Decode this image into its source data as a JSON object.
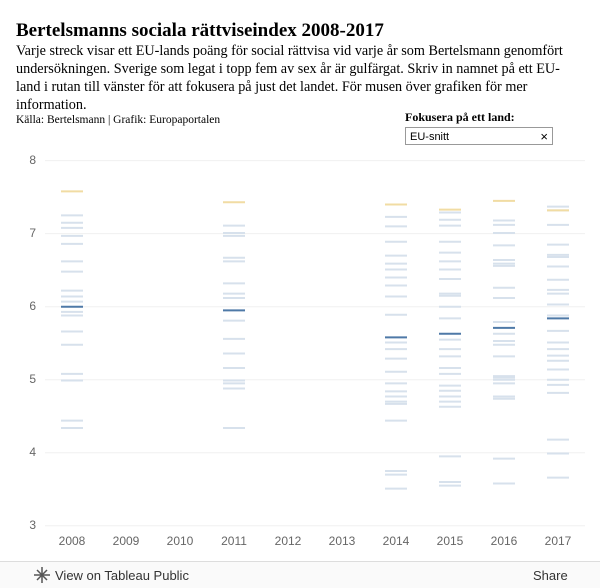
{
  "chart_data": {
    "type": "strip",
    "title": "Bertelsmanns sociala rättviseindex 2008-2017",
    "subtitle": "Varje streck visar ett EU-lands poäng för social rättvisa vid varje år som Bertelsmann genomfört undersökningen. Sverige som legat i topp fem av sex år är gulfärgat. Skriv in namnet på ett EU-land i rutan till vänster för att fokusera på just det landet. För musen över grafiken för mer information.",
    "source": "Källa: Bertelsmann | Grafik: Europaportalen",
    "filter_label": "Fokusera på ett land:",
    "filter_value": "EU-snitt",
    "categories": [
      "2008",
      "2009",
      "2010",
      "2011",
      "2012",
      "2013",
      "2014",
      "2015",
      "2016",
      "2017"
    ],
    "ylim": [
      2.97,
      8.05
    ],
    "yticks": [
      3,
      4,
      5,
      6,
      7,
      8
    ],
    "grid": true,
    "series": [
      {
        "color": "#4e79a7",
        "values": [
          6.0,
          null,
          null,
          5.95,
          null,
          null,
          5.58,
          5.63,
          5.71,
          5.84
        ]
      },
      {
        "color": "#f1dca3",
        "values": [
          7.58,
          null,
          null,
          7.43,
          null,
          null,
          7.4,
          7.33,
          7.45,
          7.32
        ]
      }
    ],
    "others_color": "#d7e1ec",
    "others": [
      [
        7.25,
        7.15,
        7.08,
        6.97,
        6.86,
        6.62,
        6.48,
        6.22,
        6.14,
        6.07,
        5.93,
        5.88,
        5.66,
        5.48,
        5.08,
        4.99,
        4.44,
        4.34
      ],
      [],
      [],
      [
        7.11,
        7.01,
        6.97,
        6.67,
        6.62,
        6.32,
        6.18,
        6.12,
        5.81,
        5.56,
        5.36,
        5.16,
        4.99,
        4.95,
        4.88,
        4.34
      ],
      [],
      [],
      [
        7.23,
        7.1,
        6.89,
        6.7,
        6.59,
        6.51,
        6.4,
        6.29,
        6.14,
        5.89,
        5.51,
        5.42,
        5.29,
        5.11,
        4.95,
        4.84,
        4.77,
        4.7,
        4.67,
        4.44,
        3.75,
        3.7,
        3.51
      ],
      [
        7.29,
        7.19,
        7.11,
        6.89,
        6.74,
        6.62,
        6.51,
        6.38,
        6.18,
        6.15,
        6.0,
        5.84,
        5.55,
        5.42,
        5.32,
        5.16,
        5.08,
        4.92,
        4.85,
        4.77,
        4.7,
        4.63,
        3.95,
        3.6,
        3.55
      ],
      [
        7.18,
        7.12,
        7.01,
        6.84,
        6.64,
        6.59,
        6.56,
        6.26,
        6.12,
        5.79,
        5.63,
        5.53,
        5.48,
        5.32,
        5.05,
        5.03,
        5.0,
        4.95,
        4.77,
        4.74,
        3.92,
        3.58
      ],
      [
        7.37,
        7.32,
        7.12,
        6.85,
        6.71,
        6.68,
        6.55,
        6.37,
        6.23,
        6.18,
        6.03,
        5.88,
        5.67,
        5.51,
        5.42,
        5.33,
        5.26,
        5.14,
        5.0,
        4.93,
        4.82,
        4.18,
        3.99,
        3.66
      ]
    ],
    "footer": {
      "view": "View on Tableau Public",
      "share": "Share"
    }
  }
}
